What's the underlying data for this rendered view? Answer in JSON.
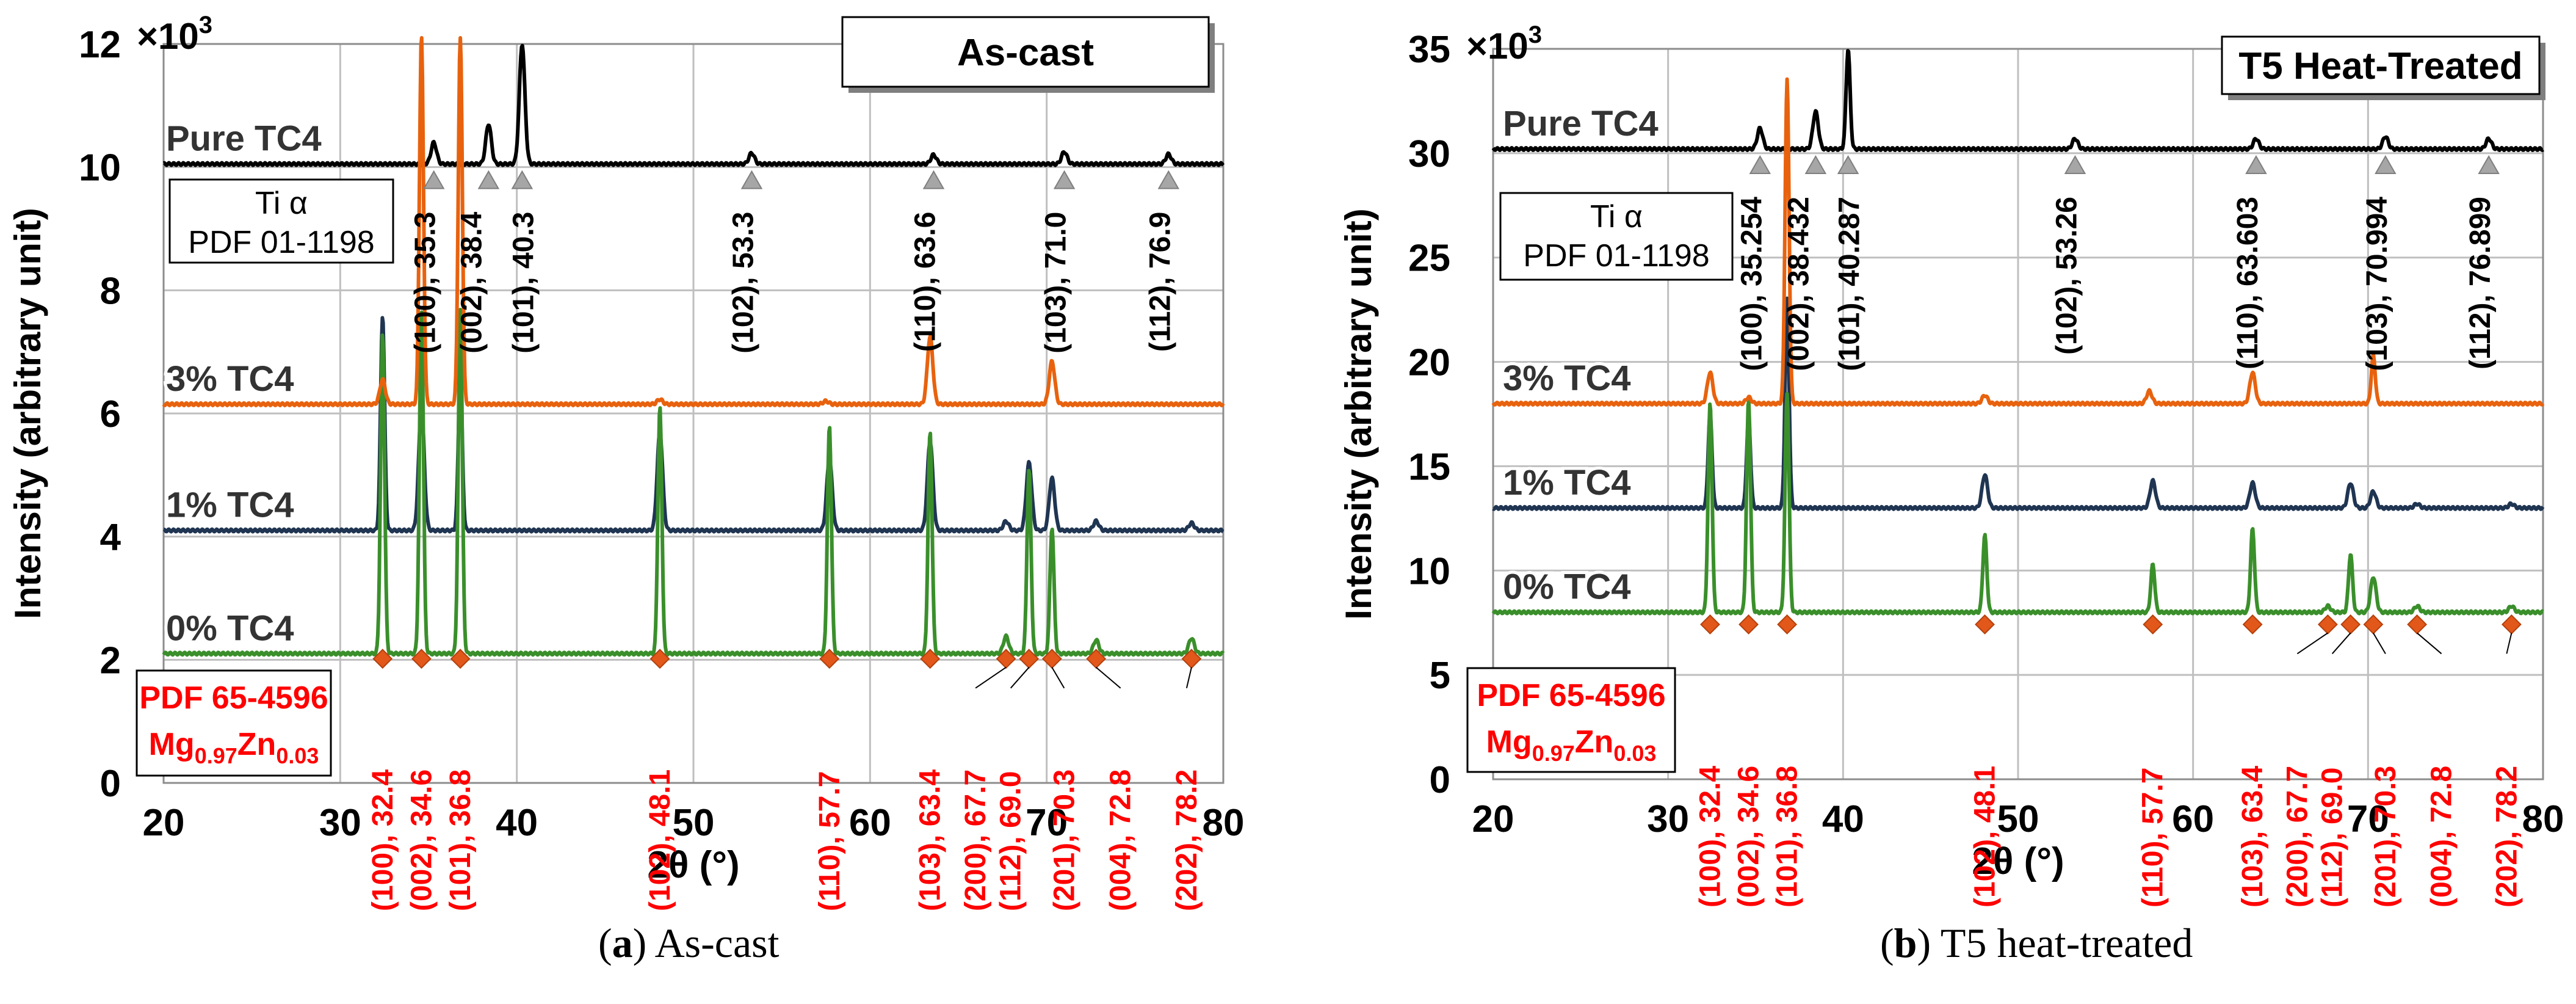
{
  "captions": [
    {
      "tag": "a",
      "text": "As-cast"
    },
    {
      "tag": "b",
      "text": "T5 heat-treated"
    }
  ],
  "chart_data": [
    {
      "type": "line",
      "title": "As-cast",
      "multiplier_label": "×10",
      "multiplier_exp": "3",
      "xlabel": "2θ (°)",
      "ylabel": "Intensity (arbitrary unit)",
      "xlim": [
        20,
        80
      ],
      "ylim": [
        0,
        12
      ],
      "xticks": [
        "20",
        "30",
        "40",
        "50",
        "60",
        "70",
        "80"
      ],
      "yticks": [
        "0",
        "2",
        "4",
        "6",
        "8",
        "10",
        "12"
      ],
      "colors": {
        "pure": "#000000",
        "p3": "#e8620e",
        "p1": "#1f3552",
        "p0": "#3a8f2b",
        "mg": "#ff0000",
        "marker_mg": "#e2571a",
        "marker_ti": "#a6a6a6"
      },
      "series": [
        {
          "name": "Pure TC4",
          "key": "pure",
          "baseline": 10.05,
          "peaks": [
            [
              35.3,
              0.35
            ],
            [
              38.4,
              0.65
            ],
            [
              40.3,
              1.95
            ],
            [
              53.3,
              0.18
            ],
            [
              63.6,
              0.15
            ],
            [
              71.0,
              0.2
            ],
            [
              76.9,
              0.16
            ]
          ]
        },
        {
          "name": "3% TC4",
          "key": "p3",
          "baseline": 6.15,
          "peaks": [
            [
              32.4,
              0.4
            ],
            [
              34.6,
              6.0
            ],
            [
              36.8,
              6.0
            ],
            [
              48.1,
              0.08
            ],
            [
              57.5,
              0.05
            ],
            [
              63.4,
              1.1
            ],
            [
              70.3,
              0.7
            ]
          ]
        },
        {
          "name": "1% TC4",
          "key": "p1",
          "baseline": 4.1,
          "peaks": [
            [
              32.4,
              3.5
            ],
            [
              34.6,
              2.0
            ],
            [
              36.8,
              2.5
            ],
            [
              48.1,
              1.6
            ],
            [
              57.7,
              1.15
            ],
            [
              63.4,
              1.45
            ],
            [
              67.7,
              0.15
            ],
            [
              69.0,
              1.1
            ],
            [
              70.3,
              0.85
            ],
            [
              72.8,
              0.15
            ],
            [
              78.2,
              0.12
            ]
          ]
        },
        {
          "name": "0% TC4",
          "key": "p0",
          "baseline": 2.1,
          "peaks": [
            [
              32.4,
              5.2
            ],
            [
              34.6,
              5.6
            ],
            [
              36.8,
              5.6
            ],
            [
              48.1,
              4.0
            ],
            [
              57.7,
              3.7
            ],
            [
              63.4,
              3.6
            ],
            [
              67.7,
              0.28
            ],
            [
              69.0,
              3.0
            ],
            [
              70.3,
              2.05
            ],
            [
              72.8,
              0.22
            ],
            [
              78.2,
              0.25
            ]
          ]
        }
      ],
      "ti_reference": {
        "label_line1": "Ti α",
        "label_line2": "PDF 01-1198",
        "peaks": [
          {
            "x": 35.3,
            "label": "(100), 35.3"
          },
          {
            "x": 38.4,
            "label": "(002), 38.4"
          },
          {
            "x": 40.3,
            "label": "(101), 40.3"
          },
          {
            "x": 53.3,
            "label": "(102), 53.3"
          },
          {
            "x": 63.6,
            "label": "(110), 63.6"
          },
          {
            "x": 71.0,
            "label": "(103), 71.0"
          },
          {
            "x": 76.9,
            "label": "(112), 76.9"
          }
        ]
      },
      "mg_reference": {
        "label_line1": "PDF 65-4596",
        "formula": [
          {
            "t": "Mg",
            "sub": false
          },
          {
            "t": "0.97",
            "sub": true
          },
          {
            "t": "Zn",
            "sub": false
          },
          {
            "t": "0.03",
            "sub": true
          }
        ],
        "peaks": [
          {
            "x": 32.4,
            "index": "(100)",
            "value": "32.4"
          },
          {
            "x": 34.6,
            "index": "(002)",
            "value": "34.6"
          },
          {
            "x": 36.8,
            "index": "(101)",
            "value": "36.8"
          },
          {
            "x": 48.1,
            "index": "(102)",
            "value": "48.1"
          },
          {
            "x": 57.7,
            "index": "(110)",
            "value": "57.7"
          },
          {
            "x": 63.4,
            "index": "(103)",
            "value": "63.4"
          },
          {
            "x": 67.7,
            "index": "(200)",
            "value": "67.7"
          },
          {
            "x": 69.0,
            "index": "(112)",
            "value": "69.0"
          },
          {
            "x": 70.3,
            "index": "(201)",
            "value": "70.3"
          },
          {
            "x": 72.8,
            "index": "(004)",
            "value": "72.8"
          },
          {
            "x": 78.2,
            "index": "(202)",
            "value": "78.2"
          }
        ]
      }
    },
    {
      "type": "line",
      "title": "T5 Heat-Treated",
      "multiplier_label": "×10",
      "multiplier_exp": "3",
      "xlabel": "2θ (°)",
      "ylabel": "Intensity (arbitrary unit)",
      "xlim": [
        20,
        80
      ],
      "ylim": [
        0,
        35
      ],
      "xticks": [
        "20",
        "30",
        "40",
        "50",
        "60",
        "70",
        "80"
      ],
      "yticks": [
        "0",
        "5",
        "10",
        "15",
        "20",
        "25",
        "30",
        "35"
      ],
      "colors": {
        "pure": "#000000",
        "p3": "#e8620e",
        "p1": "#1f3552",
        "p0": "#3a8f2b",
        "mg": "#ff0000",
        "marker_mg": "#e2571a",
        "marker_ti": "#a6a6a6"
      },
      "series": [
        {
          "name": "Pure TC4",
          "key": "pure",
          "baseline": 30.2,
          "peaks": [
            [
              35.254,
              1.0
            ],
            [
              38.432,
              1.8
            ],
            [
              40.287,
              4.8
            ],
            [
              53.26,
              0.5
            ],
            [
              63.603,
              0.5
            ],
            [
              70.994,
              0.6
            ],
            [
              76.899,
              0.5
            ]
          ]
        },
        {
          "name": "3% TC4",
          "key": "p3",
          "baseline": 18.0,
          "peaks": [
            [
              32.4,
              1.5
            ],
            [
              34.6,
              0.3
            ],
            [
              36.8,
              15.5
            ],
            [
              48.1,
              0.4
            ],
            [
              57.5,
              0.6
            ],
            [
              63.4,
              1.5
            ],
            [
              70.3,
              2.3
            ]
          ]
        },
        {
          "name": "1% TC4",
          "key": "p1",
          "baseline": 13.0,
          "peaks": [
            [
              32.4,
              4.5
            ],
            [
              34.6,
              4.3
            ],
            [
              36.8,
              10.0
            ],
            [
              48.1,
              1.6
            ],
            [
              57.7,
              1.3
            ],
            [
              63.4,
              1.2
            ],
            [
              69.0,
              1.2
            ],
            [
              70.3,
              0.8
            ],
            [
              72.8,
              0.2
            ],
            [
              78.2,
              0.2
            ]
          ]
        },
        {
          "name": "0% TC4",
          "key": "p0",
          "baseline": 8.0,
          "peaks": [
            [
              32.4,
              10.0
            ],
            [
              34.6,
              10.2
            ],
            [
              36.8,
              10.5
            ],
            [
              48.1,
              3.7
            ],
            [
              57.7,
              2.3
            ],
            [
              63.4,
              4.0
            ],
            [
              67.7,
              0.3
            ],
            [
              69.0,
              2.8
            ],
            [
              70.3,
              1.7
            ],
            [
              72.8,
              0.3
            ],
            [
              78.2,
              0.3
            ]
          ]
        }
      ],
      "ti_reference": {
        "label_line1": "Ti α",
        "label_line2": "PDF 01-1198",
        "peaks": [
          {
            "x": 35.254,
            "label": "(100), 35.254"
          },
          {
            "x": 38.432,
            "label": "(002), 38.432"
          },
          {
            "x": 40.287,
            "label": "(101), 40.287"
          },
          {
            "x": 53.26,
            "label": "(102), 53.26"
          },
          {
            "x": 63.603,
            "label": "(110), 63.603"
          },
          {
            "x": 70.994,
            "label": "(103), 70.994"
          },
          {
            "x": 76.899,
            "label": "(112), 76.899"
          }
        ]
      },
      "mg_reference": {
        "label_line1": "PDF 65-4596",
        "formula": [
          {
            "t": "Mg",
            "sub": false
          },
          {
            "t": "0.97",
            "sub": true
          },
          {
            "t": "Zn",
            "sub": false
          },
          {
            "t": "0.03",
            "sub": true
          }
        ],
        "peaks": [
          {
            "x": 32.4,
            "index": "(100)",
            "value": "32.4"
          },
          {
            "x": 34.6,
            "index": "(002)",
            "value": "34.6"
          },
          {
            "x": 36.8,
            "index": "(101)",
            "value": "36.8"
          },
          {
            "x": 48.1,
            "index": "(102)",
            "value": "48.1"
          },
          {
            "x": 57.7,
            "index": "(110)",
            "value": "57.7"
          },
          {
            "x": 63.4,
            "index": "(103)",
            "value": "63.4"
          },
          {
            "x": 67.7,
            "index": "(200)",
            "value": "67.7"
          },
          {
            "x": 69.0,
            "index": "(112)",
            "value": "69.0"
          },
          {
            "x": 70.3,
            "index": "(201)",
            "value": "70.3"
          },
          {
            "x": 72.8,
            "index": "(004)",
            "value": "72.8"
          },
          {
            "x": 78.2,
            "index": "(202)",
            "value": "78.2"
          }
        ]
      }
    }
  ]
}
